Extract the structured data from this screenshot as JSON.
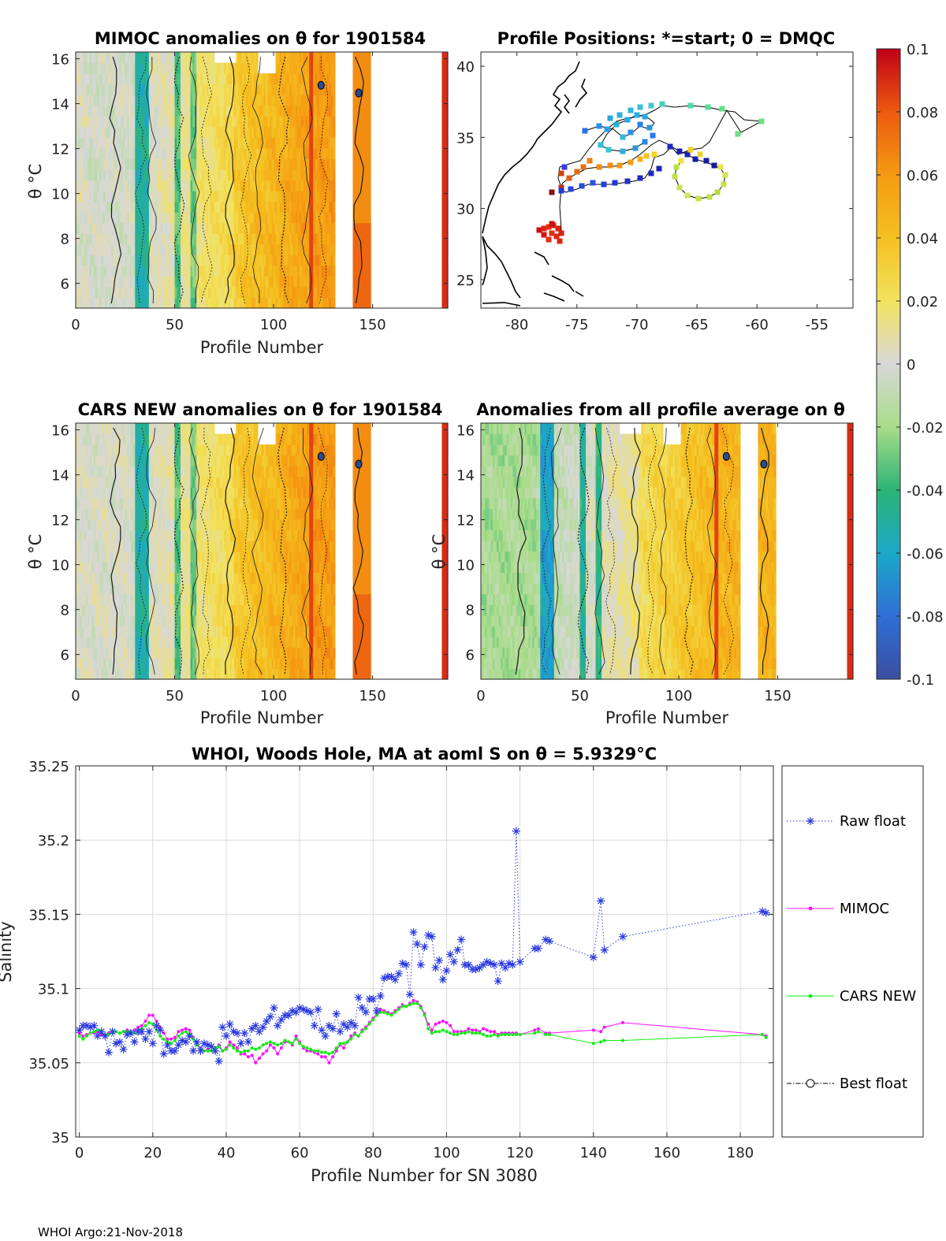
{
  "footer": "WHOI Argo:21-Nov-2018",
  "colorbar": {
    "ticks": [
      "0.1",
      "0.08",
      "0.06",
      "0.04",
      "0.02",
      "0",
      "-0.02",
      "-0.04",
      "-0.06",
      "-0.08",
      "-0.1"
    ],
    "colors": [
      "#3b4ea0",
      "#2f6fd6",
      "#1ca8c8",
      "#2cb476",
      "#a8dc88",
      "#d8d8d8",
      "#f2e25e",
      "#f4c020",
      "#f59a12",
      "#ec5a10",
      "#c00018"
    ]
  },
  "chart_data": [
    {
      "type": "heatmap",
      "title": "MIMOC anomalies on θ  for 1901584",
      "xlabel": "Profile Number",
      "ylabel": "θ °C",
      "xticks": [
        "0",
        "50",
        "100",
        "150"
      ],
      "yticks": [
        "16",
        "14",
        "12",
        "10",
        "8",
        "6"
      ],
      "xlim": [
        0,
        188
      ],
      "ylim": [
        4.9,
        16.3
      ]
    },
    {
      "type": "scatter",
      "title": "Profile Positions: *=start; 0 = DMQC",
      "xticks": [
        "-80",
        "-75",
        "-70",
        "-65",
        "-60",
        "-55"
      ],
      "yticks": [
        "40",
        "35",
        "30",
        "25"
      ],
      "xlim": [
        -83,
        -52
      ],
      "ylim": [
        23,
        41
      ]
    },
    {
      "type": "heatmap",
      "title": "CARS NEW anomalies on θ for 1901584",
      "xlabel": "Profile Number",
      "ylabel": "θ °C",
      "xticks": [
        "0",
        "50",
        "100",
        "150"
      ],
      "yticks": [
        "16",
        "14",
        "12",
        "10",
        "8",
        "6"
      ],
      "xlim": [
        0,
        188
      ],
      "ylim": [
        4.9,
        16.3
      ]
    },
    {
      "type": "heatmap",
      "title": "Anomalies from all profile average on θ",
      "xlabel": "Profile Number",
      "ylabel": "θ °C",
      "xticks": [
        "0",
        "50",
        "100",
        "150"
      ],
      "yticks": [
        "16",
        "14",
        "12",
        "10",
        "8",
        "6"
      ],
      "xlim": [
        0,
        188
      ],
      "ylim": [
        4.9,
        16.3
      ]
    },
    {
      "type": "line",
      "title": "WHOI, Woods Hole, MA at aoml S on θ = 5.9329°C",
      "xlabel": "Profile Number for SN 3080",
      "ylabel": "Salinity",
      "xlim": [
        -1,
        189
      ],
      "ylim": [
        35.0,
        35.25
      ],
      "xticks": [
        "0",
        "20",
        "40",
        "60",
        "80",
        "100",
        "120",
        "140",
        "160",
        "180"
      ],
      "yticks": [
        "35.25",
        "35.2",
        "35.15",
        "35.1",
        "35.05",
        "35"
      ],
      "legend": [
        "Raw float",
        "MIMOC",
        "CARS NEW",
        "Best float"
      ],
      "series": [
        {
          "name": "Raw float",
          "x": [
            0,
            1,
            2,
            3,
            4,
            5,
            6,
            7,
            8,
            9,
            10,
            11,
            12,
            13,
            14,
            15,
            16,
            17,
            18,
            19,
            20,
            21,
            22,
            23,
            24,
            25,
            26,
            27,
            28,
            29,
            30,
            31,
            32,
            33,
            34,
            35,
            36,
            37,
            38,
            39,
            40,
            41,
            42,
            43,
            44,
            45,
            46,
            47,
            48,
            49,
            50,
            51,
            52,
            53,
            54,
            55,
            56,
            57,
            58,
            59,
            60,
            61,
            62,
            63,
            64,
            65,
            66,
            67,
            68,
            69,
            70,
            71,
            72,
            73,
            74,
            75,
            76,
            77,
            78,
            79,
            80,
            81,
            82,
            83,
            84,
            85,
            86,
            87,
            88,
            89,
            90,
            91,
            92,
            93,
            94,
            95,
            96,
            97,
            98,
            99,
            100,
            101,
            102,
            103,
            104,
            105,
            106,
            107,
            108,
            109,
            110,
            111,
            112,
            113,
            114,
            115,
            116,
            117,
            118,
            119,
            120,
            124,
            125,
            127,
            128,
            140,
            142,
            143,
            148,
            186,
            187
          ],
          "values": [
            35.072,
            35.075,
            35.075,
            35.074,
            35.075,
            35.068,
            35.071,
            35.068,
            35.057,
            35.071,
            35.063,
            35.064,
            35.059,
            35.069,
            35.07,
            35.064,
            35.071,
            35.071,
            35.066,
            35.071,
            35.063,
            35.075,
            35.072,
            35.056,
            35.062,
            35.058,
            35.058,
            35.062,
            35.065,
            35.064,
            35.068,
            35.058,
            35.064,
            35.058,
            35.063,
            35.062,
            35.061,
            35.058,
            35.051,
            35.074,
            35.068,
            35.076,
            35.071,
            35.07,
            35.063,
            35.07,
            35.064,
            35.073,
            35.075,
            35.071,
            35.074,
            35.078,
            35.081,
            35.087,
            35.075,
            35.079,
            35.082,
            35.082,
            35.085,
            35.084,
            35.087,
            35.086,
            35.085,
            35.084,
            35.075,
            35.086,
            35.072,
            35.068,
            35.075,
            35.073,
            35.083,
            35.071,
            35.076,
            35.074,
            35.077,
            35.075,
            35.094,
            35.087,
            35.084,
            35.093,
            35.093,
            35.085,
            35.095,
            35.107,
            35.108,
            35.108,
            35.106,
            35.11,
            35.117,
            35.116,
            35.096,
            35.138,
            35.13,
            35.116,
            35.128,
            35.136,
            35.135,
            35.114,
            35.119,
            35.106,
            35.112,
            35.123,
            35.118,
            35.126,
            35.133,
            35.116,
            35.116,
            35.113,
            35.113,
            35.114,
            35.116,
            35.118,
            35.117,
            35.116,
            35.105,
            35.117,
            35.114,
            35.117,
            35.116,
            35.206,
            35.118,
            35.127,
            35.127,
            35.133,
            35.132,
            35.121,
            35.159,
            35.126,
            35.135,
            35.152,
            35.151
          ]
        },
        {
          "name": "MIMOC",
          "x": [
            0,
            1,
            2,
            3,
            4,
            5,
            6,
            7,
            8,
            9,
            10,
            11,
            12,
            13,
            14,
            15,
            16,
            17,
            18,
            19,
            20,
            21,
            22,
            23,
            24,
            25,
            26,
            27,
            28,
            29,
            30,
            31,
            32,
            33,
            34,
            35,
            36,
            37,
            38,
            39,
            40,
            41,
            42,
            43,
            44,
            45,
            46,
            47,
            48,
            49,
            50,
            51,
            52,
            53,
            54,
            55,
            56,
            57,
            58,
            59,
            60,
            61,
            62,
            63,
            64,
            65,
            66,
            67,
            68,
            69,
            70,
            71,
            72,
            73,
            74,
            75,
            76,
            77,
            78,
            79,
            80,
            81,
            82,
            83,
            84,
            85,
            86,
            87,
            88,
            89,
            90,
            91,
            92,
            93,
            94,
            95,
            96,
            97,
            98,
            99,
            100,
            101,
            102,
            103,
            104,
            105,
            106,
            107,
            108,
            109,
            110,
            111,
            112,
            113,
            114,
            115,
            116,
            117,
            118,
            119,
            120,
            124,
            125,
            127,
            128,
            140,
            142,
            143,
            148,
            186,
            187
          ],
          "values": [
            35.07,
            35.068,
            35.069,
            35.07,
            35.07,
            35.071,
            35.069,
            35.068,
            35.07,
            35.07,
            35.071,
            35.07,
            35.071,
            35.072,
            35.071,
            35.072,
            35.074,
            35.075,
            35.078,
            35.082,
            35.082,
            35.078,
            35.074,
            35.07,
            35.066,
            35.066,
            35.067,
            35.071,
            35.072,
            35.073,
            35.072,
            35.067,
            35.063,
            35.06,
            35.058,
            35.059,
            35.058,
            35.06,
            35.062,
            35.058,
            35.06,
            35.064,
            35.062,
            35.06,
            35.056,
            35.056,
            35.054,
            35.055,
            35.05,
            35.053,
            35.056,
            35.058,
            35.062,
            35.06,
            35.056,
            35.06,
            35.064,
            35.064,
            35.062,
            35.068,
            35.064,
            35.06,
            35.058,
            35.058,
            35.057,
            35.056,
            35.054,
            35.054,
            35.05,
            35.054,
            35.058,
            35.062,
            35.06,
            35.064,
            35.068,
            35.07,
            35.068,
            35.072,
            35.074,
            35.077,
            35.08,
            35.083,
            35.086,
            35.085,
            35.084,
            35.083,
            35.085,
            35.087,
            35.089,
            35.088,
            35.09,
            35.092,
            35.091,
            35.088,
            35.083,
            35.076,
            35.072,
            35.076,
            35.077,
            35.078,
            35.077,
            35.075,
            35.071,
            35.071,
            35.071,
            35.071,
            35.073,
            35.072,
            35.072,
            35.071,
            35.073,
            35.072,
            35.071,
            35.071,
            35.069,
            35.07,
            35.07,
            35.07,
            35.07,
            35.07,
            35.069,
            35.072,
            35.073,
            35.07,
            35.07,
            35.072,
            35.071,
            35.074,
            35.077,
            35.069,
            35.068
          ]
        },
        {
          "name": "CARS NEW",
          "x": [
            0,
            1,
            2,
            3,
            4,
            5,
            6,
            7,
            8,
            9,
            10,
            11,
            12,
            13,
            14,
            15,
            16,
            17,
            18,
            19,
            20,
            21,
            22,
            23,
            24,
            25,
            26,
            27,
            28,
            29,
            30,
            31,
            32,
            33,
            34,
            35,
            36,
            37,
            38,
            39,
            40,
            41,
            42,
            43,
            44,
            45,
            46,
            47,
            48,
            49,
            50,
            51,
            52,
            53,
            54,
            55,
            56,
            57,
            58,
            59,
            60,
            61,
            62,
            63,
            64,
            65,
            66,
            67,
            68,
            69,
            70,
            71,
            72,
            73,
            74,
            75,
            76,
            77,
            78,
            79,
            80,
            81,
            82,
            83,
            84,
            85,
            86,
            87,
            88,
            89,
            90,
            91,
            92,
            93,
            94,
            95,
            96,
            97,
            98,
            99,
            100,
            101,
            102,
            103,
            104,
            105,
            106,
            107,
            108,
            109,
            110,
            111,
            112,
            113,
            114,
            115,
            116,
            117,
            118,
            119,
            120,
            124,
            125,
            127,
            128,
            140,
            142,
            143,
            148,
            186,
            187
          ],
          "values": [
            35.068,
            35.066,
            35.068,
            35.07,
            35.071,
            35.072,
            35.071,
            35.069,
            35.069,
            35.07,
            35.071,
            35.07,
            35.071,
            35.071,
            35.071,
            35.07,
            35.072,
            35.073,
            35.075,
            35.077,
            35.076,
            35.072,
            35.068,
            35.066,
            35.064,
            35.063,
            35.065,
            35.068,
            35.07,
            35.071,
            35.069,
            35.066,
            35.062,
            35.059,
            35.058,
            35.058,
            35.058,
            35.06,
            35.061,
            35.058,
            35.059,
            35.062,
            35.06,
            35.058,
            35.057,
            35.058,
            35.058,
            35.06,
            35.059,
            35.06,
            35.062,
            35.063,
            35.064,
            35.063,
            35.062,
            35.063,
            35.065,
            35.064,
            35.063,
            35.066,
            35.063,
            35.061,
            35.06,
            35.059,
            35.058,
            35.058,
            35.057,
            35.057,
            35.056,
            35.057,
            35.06,
            35.063,
            35.063,
            35.064,
            35.066,
            35.069,
            35.068,
            35.071,
            35.073,
            35.076,
            35.079,
            35.082,
            35.084,
            35.084,
            35.083,
            35.082,
            35.084,
            35.086,
            35.088,
            35.088,
            35.089,
            35.09,
            35.09,
            35.087,
            35.082,
            35.073,
            35.07,
            35.071,
            35.071,
            35.072,
            35.071,
            35.07,
            35.069,
            35.069,
            35.07,
            35.07,
            35.071,
            35.07,
            35.07,
            35.07,
            35.069,
            35.068,
            35.068,
            35.069,
            35.068,
            35.069,
            35.069,
            35.069,
            35.069,
            35.069,
            35.069,
            35.07,
            35.071,
            35.069,
            35.069,
            35.063,
            35.064,
            35.065,
            35.065,
            35.069,
            35.067
          ]
        }
      ]
    }
  ]
}
